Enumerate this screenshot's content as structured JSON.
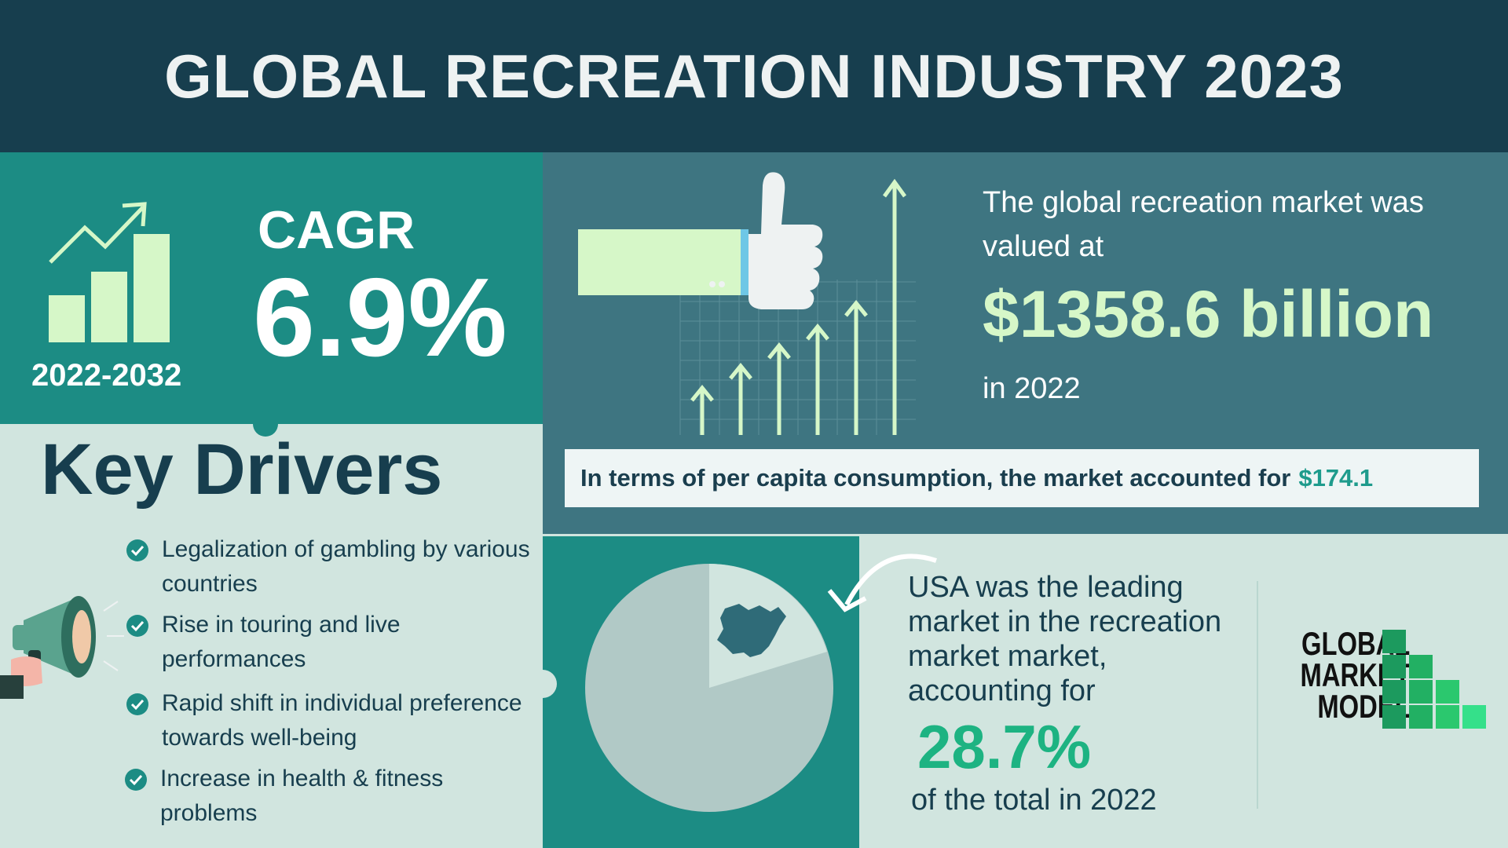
{
  "header": {
    "title": "GLOBAL RECREATION INDUSTRY 2023"
  },
  "cagr": {
    "label": "CAGR",
    "value": "6.9%",
    "period": "2022-2032"
  },
  "market": {
    "lead": "The global recreation market was valued at",
    "value": "$1358.6 billion",
    "year": "in 2022",
    "per_capita_text": "In terms of per capita consumption, the market accounted for",
    "per_capita_value": "$174.1"
  },
  "drivers": {
    "title": "Key Drivers",
    "items": [
      "Legalization of gambling by various countries",
      "Rise in touring and live performances",
      "Rapid shift in individual preference towards well-being",
      "Increase in health & fitness problems"
    ]
  },
  "region": {
    "text": "USA was the leading market in the recreation market market, accounting for",
    "value": "28.7%",
    "tail": "of the total in 2022"
  },
  "brand": {
    "line1": "GLOBAL",
    "line2": "MARKET",
    "line3": "MODEL"
  },
  "colors": {
    "header_bg": "#173e4e",
    "teal": "#1c8c84",
    "slate": "#3e7581",
    "mint_bg": "#d1e5df",
    "accent_light": "#d6f7c8",
    "accent_green": "#1db382"
  },
  "icons": [
    "growth-chart-icon",
    "thumbs-up-icon",
    "rising-arrows-icon",
    "megaphone-icon",
    "check-circle-icon",
    "china-map-icon",
    "curved-arrow-icon",
    "brand-logo-icon"
  ]
}
